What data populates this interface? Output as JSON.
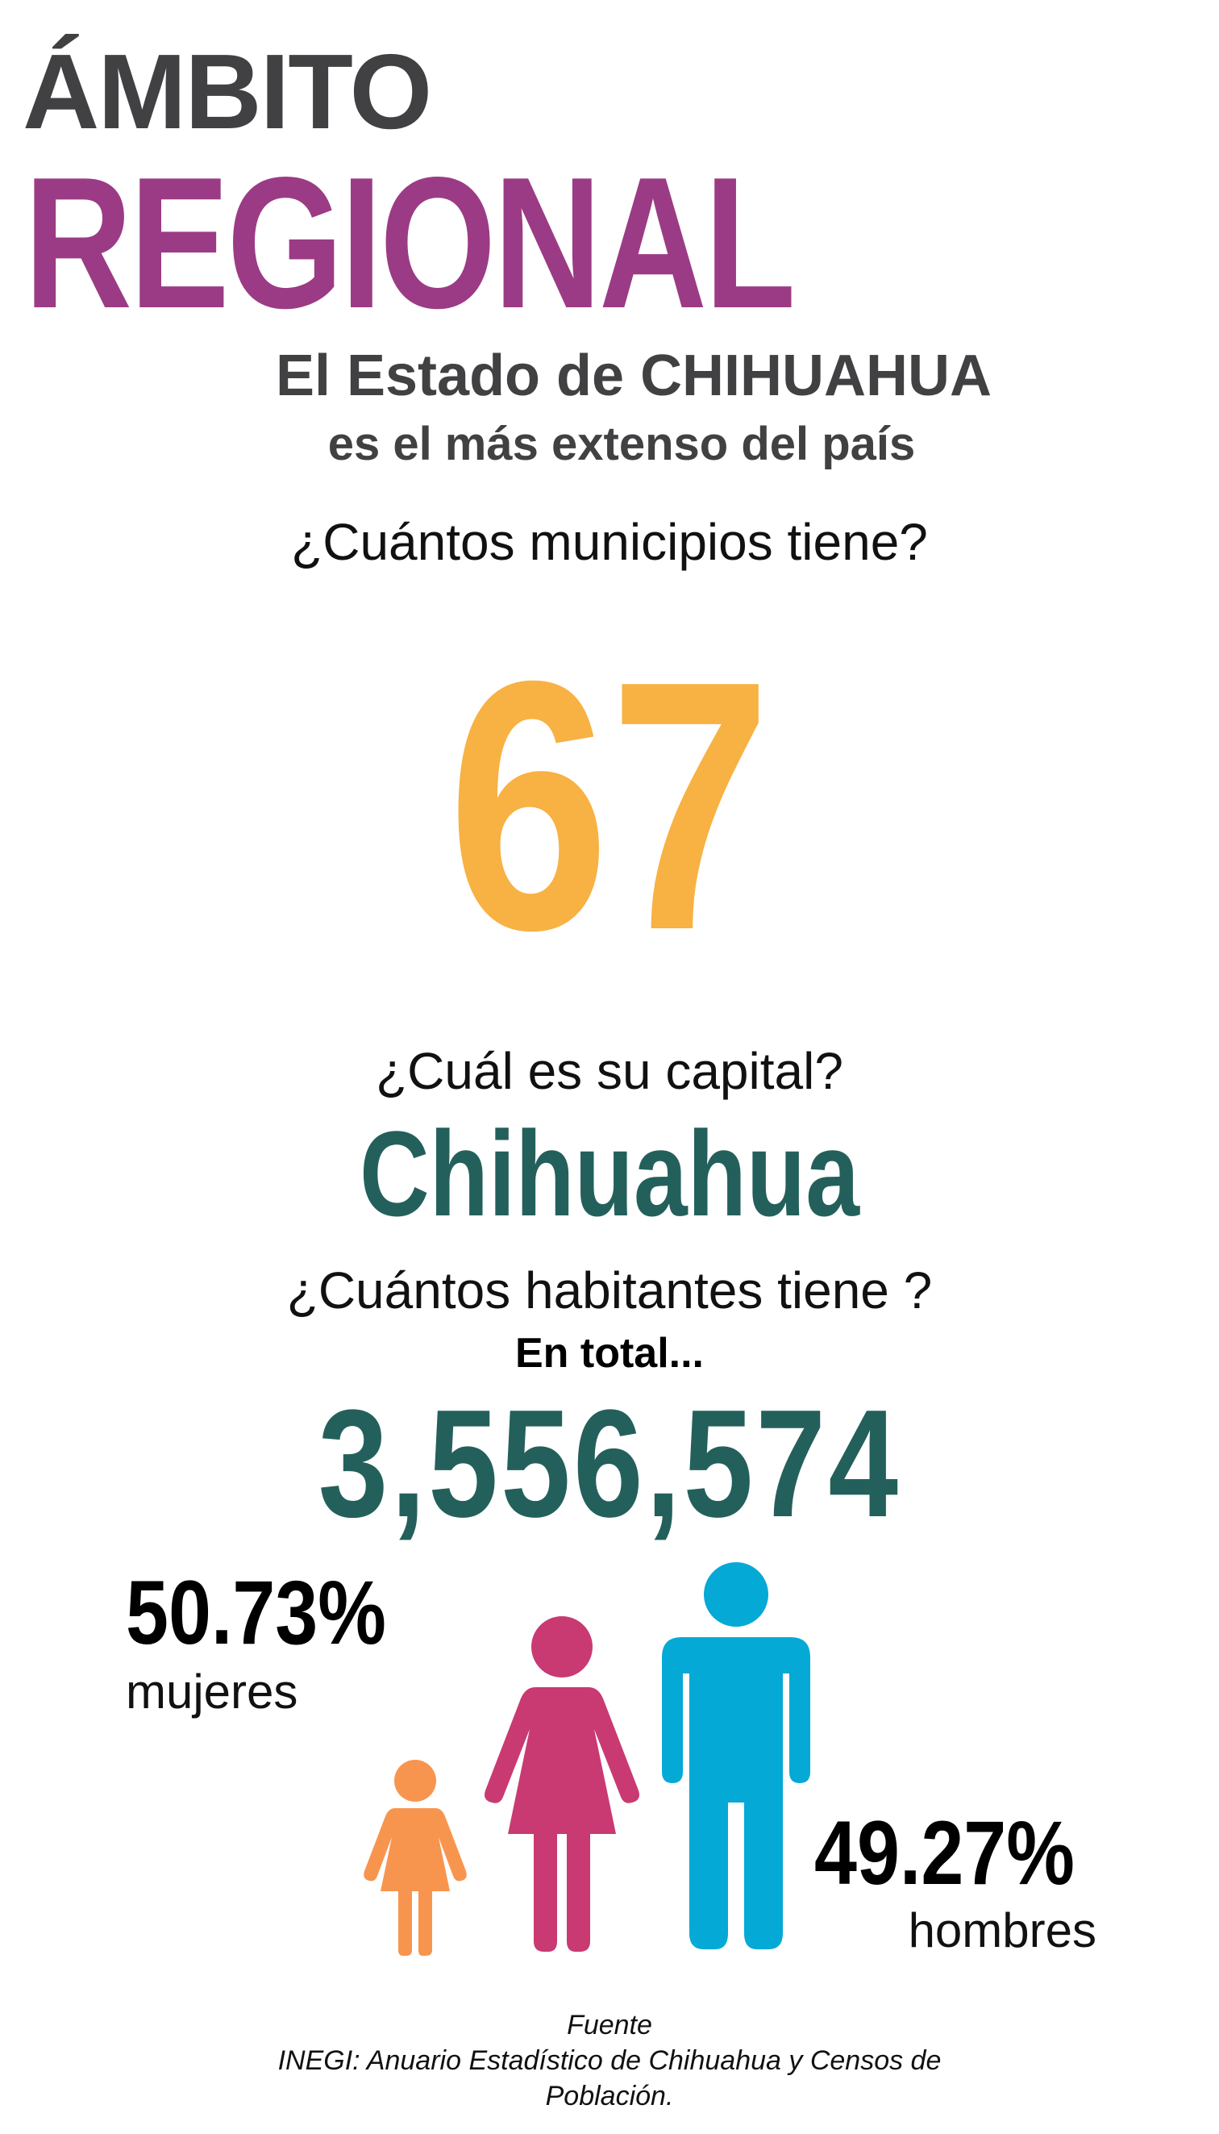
{
  "header": {
    "line1": "ÁMBITO",
    "line2": "REGIONAL"
  },
  "intro": {
    "line1": "El Estado de CHIHUAHUA",
    "line2": "es el más extenso del país"
  },
  "municipalities": {
    "question": "¿Cuántos municipios tiene?",
    "value": "67"
  },
  "capital": {
    "question": "¿Cuál es su capital?",
    "value": "Chihuahua"
  },
  "population": {
    "question": "¿Cuántos habitantes tiene ?",
    "total_label": "En total...",
    "total": "3,556,574",
    "women_pct": "50.73%",
    "women_label": "mujeres",
    "men_pct": "49.27%",
    "men_label": "hombres"
  },
  "source": {
    "line1": "Fuente",
    "line2": "INEGI: Anuario Estadístico de Chihuahua y Censos de",
    "line3": "Población."
  },
  "colors": {
    "header_dark": "#414042",
    "header_purple": "#9b3b85",
    "number_orange": "#f8b143",
    "teal": "#24605b",
    "girl_orange": "#f7954f",
    "woman_pink": "#c93a72",
    "man_blue": "#05a9d6"
  },
  "icons": [
    "girl-icon",
    "woman-icon",
    "man-icon"
  ]
}
